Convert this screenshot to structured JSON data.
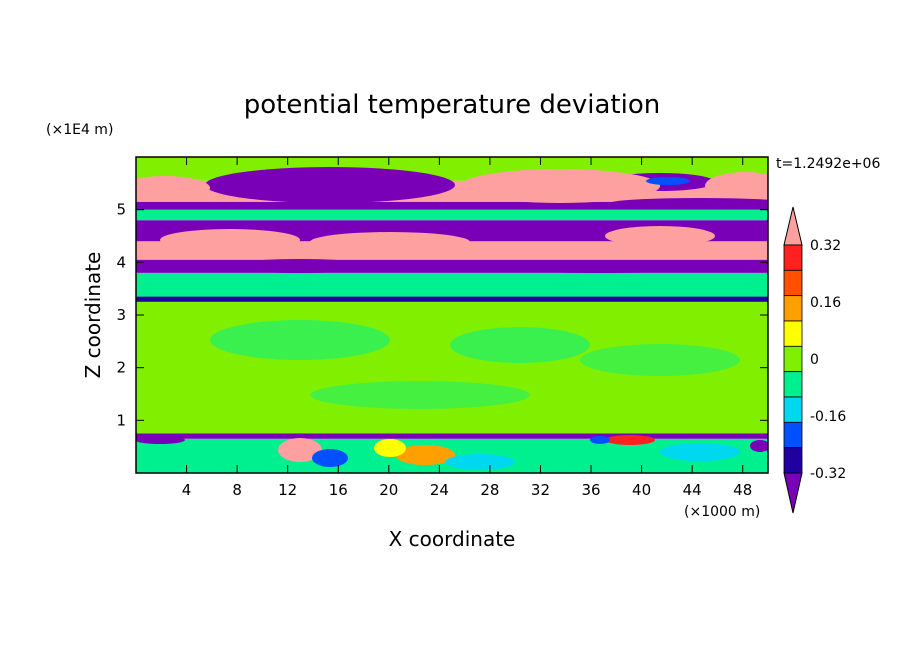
{
  "chart_data": {
    "type": "heatmap",
    "title": "potential temperature deviation",
    "xlabel": "X coordinate",
    "ylabel": "Z coordinate",
    "x_unit": "(×1000 m)",
    "y_unit": "(×1E4 m)",
    "time_label": "t=1.2492e+06",
    "x_ticks": [
      4,
      8,
      12,
      16,
      20,
      24,
      28,
      32,
      36,
      40,
      44,
      48
    ],
    "y_ticks": [
      1,
      2,
      3,
      4,
      5
    ],
    "xlim": [
      0,
      50
    ],
    "ylim": [
      0,
      6
    ],
    "colorbar": {
      "levels": [
        -0.4,
        -0.32,
        -0.24,
        -0.16,
        -0.08,
        0,
        0.08,
        0.16,
        0.24,
        0.32,
        0.4
      ],
      "colors": [
        "#7a00b8",
        "#2000a0",
        "#0050ff",
        "#00d8f0",
        "#00f090",
        "#80f000",
        "#ffff00",
        "#ffa000",
        "#ff5000",
        "#ff2020",
        "#ffa0a0"
      ],
      "tick_labels": [
        "0.32",
        "0.16",
        "0",
        "-0.16",
        "-0.32"
      ],
      "tick_values": [
        0.32,
        0.16,
        0,
        -0.16,
        -0.32
      ]
    },
    "field_regions": [
      {
        "z": [
          0.0,
          0.65
        ],
        "x": [
          0,
          50
        ],
        "color": "#00f090"
      },
      {
        "z": [
          0.65,
          0.75
        ],
        "x": [
          0,
          50
        ],
        "color": "#7a00b8"
      },
      {
        "z": [
          0.75,
          3.25
        ],
        "x": [
          0,
          50
        ],
        "color": "#80f000"
      },
      {
        "z": [
          3.25,
          3.35
        ],
        "x": [
          0,
          50
        ],
        "color": "#2000a0"
      },
      {
        "z": [
          3.35,
          3.8
        ],
        "x": [
          0,
          50
        ],
        "color": "#00f090"
      },
      {
        "z": [
          3.8,
          4.05
        ],
        "x": [
          0,
          50
        ],
        "color": "#7a00b8"
      },
      {
        "z": [
          4.05,
          4.4
        ],
        "x": [
          0,
          50
        ],
        "color": "#ffa0a0"
      },
      {
        "z": [
          4.4,
          4.8
        ],
        "x": [
          0,
          50
        ],
        "color": "#7a00b8"
      },
      {
        "z": [
          4.8,
          5.0
        ],
        "x": [
          0,
          50
        ],
        "color": "#00f090"
      },
      {
        "z": [
          5.0,
          5.15
        ],
        "x": [
          0,
          50
        ],
        "color": "#7a00b8"
      },
      {
        "z": [
          5.15,
          5.55
        ],
        "x": [
          0,
          50
        ],
        "color": "#ffa0a0"
      },
      {
        "z": [
          5.55,
          6.0
        ],
        "x": [
          0,
          50
        ],
        "color": "#80f000"
      }
    ]
  }
}
